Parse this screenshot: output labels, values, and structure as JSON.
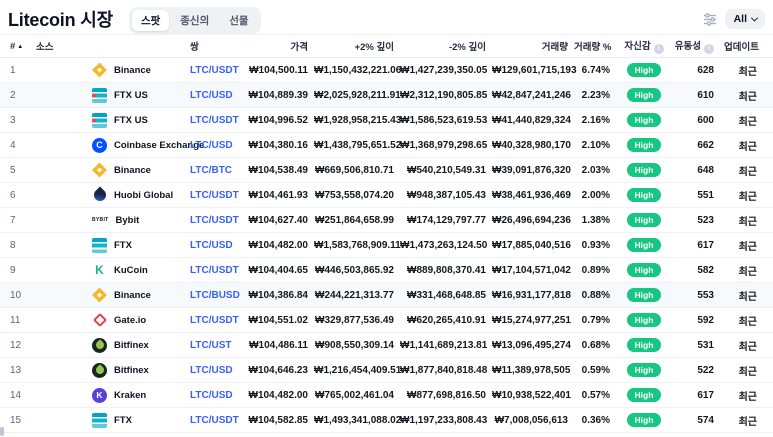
{
  "page": {
    "title": "Litecoin 시장"
  },
  "tabs": [
    {
      "label": "스팟",
      "active": true
    },
    {
      "label": "종신의",
      "active": false
    },
    {
      "label": "선물",
      "active": false
    }
  ],
  "controls": {
    "filter_dropdown_label": "All",
    "filter_icon": "sliders-icon",
    "chevron_icon": "chevron-down-icon"
  },
  "colors": {
    "accent_blue": "#3861fb",
    "confidence_green": "#16c784",
    "row_highlight": "#f7fafd",
    "border": "#eff2f5",
    "text_dark": "#0d1421",
    "text_gray": "#58667e",
    "binance_gold": "#f3ba2f",
    "coinbase_blue": "#0052ff",
    "kraken_purple": "#5741d9",
    "kucoin_green": "#23af91",
    "gateio_red": "#e3404f",
    "ftx_teal": "#02a6c2"
  },
  "table": {
    "headers": {
      "rank": "#",
      "source": "소스",
      "pair": "쌍",
      "price": "가격",
      "depth_plus": "+2% 깊이",
      "depth_minus": "-2% 깊이",
      "volume": "거래량",
      "volume_pct": "거래량 %",
      "confidence": "자신감",
      "liquidity": "유동성",
      "updated": "업데이트"
    },
    "rows": [
      {
        "rank": "1",
        "source": "Binance",
        "logo": "binance",
        "pair": "LTC/USDT",
        "price": "₩104,500.11",
        "depth_plus": "₩1,150,432,221.06",
        "depth_minus": "₩1,427,239,350.05",
        "volume": "₩129,601,715,193",
        "volume_pct": "6.74%",
        "confidence": "High",
        "liquidity": "628",
        "updated": "최근",
        "highlight": false
      },
      {
        "rank": "2",
        "source": "FTX US",
        "logo": "ftxus",
        "pair": "LTC/USD",
        "price": "₩104,889.39",
        "depth_plus": "₩2,025,928,211.91",
        "depth_minus": "₩2,312,190,805.85",
        "volume": "₩42,847,241,246",
        "volume_pct": "2.23%",
        "confidence": "High",
        "liquidity": "610",
        "updated": "최근",
        "highlight": true
      },
      {
        "rank": "3",
        "source": "FTX US",
        "logo": "ftxus",
        "pair": "LTC/USDT",
        "price": "₩104,996.52",
        "depth_plus": "₩1,928,958,215.43",
        "depth_minus": "₩1,586,523,619.53",
        "volume": "₩41,440,829,324",
        "volume_pct": "2.16%",
        "confidence": "High",
        "liquidity": "600",
        "updated": "최근",
        "highlight": false
      },
      {
        "rank": "4",
        "source": "Coinbase Exchange",
        "logo": "coinbase",
        "pair": "LTC/USD",
        "price": "₩104,380.16",
        "depth_plus": "₩1,438,795,651.52",
        "depth_minus": "₩1,368,979,298.65",
        "volume": "₩40,328,980,170",
        "volume_pct": "2.10%",
        "confidence": "High",
        "liquidity": "662",
        "updated": "최근",
        "highlight": false
      },
      {
        "rank": "5",
        "source": "Binance",
        "logo": "binance",
        "pair": "LTC/BTC",
        "price": "₩104,538.49",
        "depth_plus": "₩669,506,810.71",
        "depth_minus": "₩540,210,549.31",
        "volume": "₩39,091,876,320",
        "volume_pct": "2.03%",
        "confidence": "High",
        "liquidity": "648",
        "updated": "최근",
        "highlight": false
      },
      {
        "rank": "6",
        "source": "Huobi Global",
        "logo": "huobi",
        "pair": "LTC/USDT",
        "price": "₩104,461.93",
        "depth_plus": "₩753,558,074.20",
        "depth_minus": "₩948,387,105.43",
        "volume": "₩38,461,936,469",
        "volume_pct": "2.00%",
        "confidence": "High",
        "liquidity": "551",
        "updated": "최근",
        "highlight": false
      },
      {
        "rank": "7",
        "source": "Bybit",
        "logo": "bybit",
        "pair": "LTC/USDT",
        "price": "₩104,627.40",
        "depth_plus": "₩251,864,658.99",
        "depth_minus": "₩174,129,797.77",
        "volume": "₩26,496,694,236",
        "volume_pct": "1.38%",
        "confidence": "High",
        "liquidity": "523",
        "updated": "최근",
        "highlight": false
      },
      {
        "rank": "8",
        "source": "FTX",
        "logo": "ftx",
        "pair": "LTC/USD",
        "price": "₩104,482.00",
        "depth_plus": "₩1,583,768,909.11",
        "depth_minus": "₩1,473,263,124.50",
        "volume": "₩17,885,040,516",
        "volume_pct": "0.93%",
        "confidence": "High",
        "liquidity": "617",
        "updated": "최근",
        "highlight": false
      },
      {
        "rank": "9",
        "source": "KuCoin",
        "logo": "kucoin",
        "pair": "LTC/USDT",
        "price": "₩104,404.65",
        "depth_plus": "₩446,503,865.92",
        "depth_minus": "₩889,808,370.41",
        "volume": "₩17,104,571,042",
        "volume_pct": "0.89%",
        "confidence": "High",
        "liquidity": "582",
        "updated": "최근",
        "highlight": false
      },
      {
        "rank": "10",
        "source": "Binance",
        "logo": "binance",
        "pair": "LTC/BUSD",
        "price": "₩104,386.84",
        "depth_plus": "₩244,221,313.77",
        "depth_minus": "₩331,468,648.85",
        "volume": "₩16,931,177,818",
        "volume_pct": "0.88%",
        "confidence": "High",
        "liquidity": "553",
        "updated": "최근",
        "highlight": true
      },
      {
        "rank": "11",
        "source": "Gate.io",
        "logo": "gateio",
        "pair": "LTC/USDT",
        "price": "₩104,551.02",
        "depth_plus": "₩329,877,536.49",
        "depth_minus": "₩620,265,410.91",
        "volume": "₩15,274,977,251",
        "volume_pct": "0.79%",
        "confidence": "High",
        "liquidity": "592",
        "updated": "최근",
        "highlight": false
      },
      {
        "rank": "12",
        "source": "Bitfinex",
        "logo": "bitfinex",
        "pair": "LTC/UST",
        "price": "₩104,486.11",
        "depth_plus": "₩908,550,309.14",
        "depth_minus": "₩1,141,689,213.81",
        "volume": "₩13,096,495,274",
        "volume_pct": "0.68%",
        "confidence": "High",
        "liquidity": "531",
        "updated": "최근",
        "highlight": false
      },
      {
        "rank": "13",
        "source": "Bitfinex",
        "logo": "bitfinex",
        "pair": "LTC/USD",
        "price": "₩104,646.23",
        "depth_plus": "₩1,216,454,409.51",
        "depth_minus": "₩1,877,840,818.48",
        "volume": "₩11,389,978,505",
        "volume_pct": "0.59%",
        "confidence": "High",
        "liquidity": "522",
        "updated": "최근",
        "highlight": false
      },
      {
        "rank": "14",
        "source": "Kraken",
        "logo": "kraken",
        "pair": "LTC/USD",
        "price": "₩104,482.00",
        "depth_plus": "₩765,002,461.04",
        "depth_minus": "₩877,698,816.50",
        "volume": "₩10,938,522,401",
        "volume_pct": "0.57%",
        "confidence": "High",
        "liquidity": "617",
        "updated": "최근",
        "highlight": false
      },
      {
        "rank": "15",
        "source": "FTX",
        "logo": "ftx",
        "pair": "LTC/USDT",
        "price": "₩104,582.85",
        "depth_plus": "₩1,493,341,088.02",
        "depth_minus": "₩1,197,233,808.43",
        "volume": "₩7,008,056,613",
        "volume_pct": "0.36%",
        "confidence": "High",
        "liquidity": "574",
        "updated": "최근",
        "highlight": false
      }
    ]
  }
}
